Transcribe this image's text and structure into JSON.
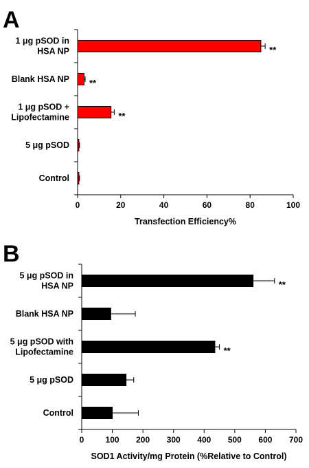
{
  "chart_data": [
    {
      "panel": "A",
      "type": "bar",
      "orientation": "horizontal",
      "categories": [
        "1 μg pSOD in\nHSA NP",
        "Blank HSA NP",
        "1 μg pSOD +\nLipofectamine",
        "5 μg pSOD",
        "Control"
      ],
      "values": [
        85,
        3,
        15.5,
        0.6,
        0.6
      ],
      "errors": [
        2,
        0.5,
        1.5,
        0.3,
        0.3
      ],
      "annotations": [
        "**",
        "**",
        "**",
        "",
        ""
      ],
      "xlabel": "Transfection Efficiency%",
      "xlim": [
        0,
        100
      ],
      "xticks": [
        0,
        20,
        40,
        60,
        80,
        100
      ],
      "bar_color": "#ff0000",
      "grid": false
    },
    {
      "panel": "B",
      "type": "bar",
      "orientation": "horizontal",
      "categories": [
        "5 μg pSOD in\nHSA NP",
        "Blank HSA NP",
        "5 μg pSOD with\nLipofectamine",
        "5 μg pSOD",
        "Control"
      ],
      "values": [
        560,
        95,
        435,
        145,
        100
      ],
      "errors": [
        70,
        80,
        15,
        25,
        85
      ],
      "annotations": [
        "**",
        "",
        "**",
        "",
        ""
      ],
      "xlabel": "SOD1 Activity/mg Protein (%Relative to Control)",
      "xlim": [
        0,
        700
      ],
      "xticks": [
        0,
        100,
        200,
        300,
        400,
        500,
        600,
        700
      ],
      "bar_color": "#000000",
      "grid": false
    }
  ]
}
